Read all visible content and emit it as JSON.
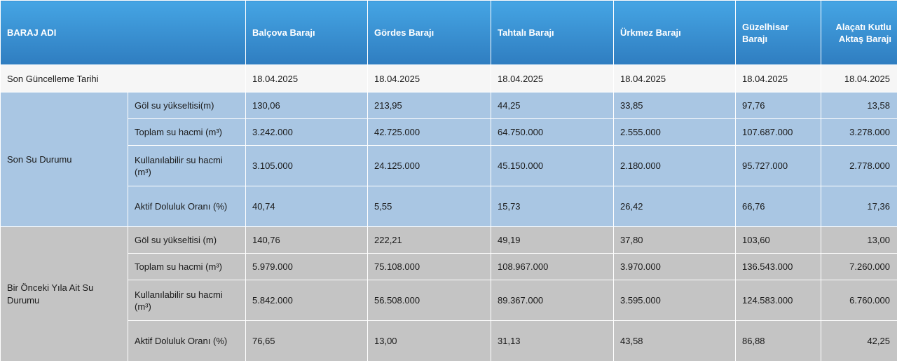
{
  "header": {
    "name_label": "BARAJ ADI",
    "dams": [
      "Balçova Barajı",
      "Gördes Barajı",
      "Tahtalı Barajı",
      "Ürkmez Barajı",
      "Güzelhisar Barajı",
      "Alaçatı Kutlu Aktaş Barajı"
    ]
  },
  "update_row": {
    "label": "Son Güncelleme Tarihi",
    "values": [
      "18.04.2025",
      "18.04.2025",
      "18.04.2025",
      "18.04.2025",
      "18.04.2025",
      "18.04.2025"
    ]
  },
  "groups": [
    {
      "label": "Son Su Durumu",
      "rows": [
        {
          "label": "Göl su yükseltisi(m)",
          "values": [
            "130,06",
            "213,95",
            "44,25",
            "33,85",
            "97,76",
            "13,58"
          ]
        },
        {
          "label": "Toplam su hacmi (m³)",
          "values": [
            "3.242.000",
            "42.725.000",
            "64.750.000",
            "2.555.000",
            "107.687.000",
            "3.278.000"
          ]
        },
        {
          "label": "Kullanılabilir su hacmi (m³)",
          "values": [
            "3.105.000",
            "24.125.000",
            "45.150.000",
            "2.180.000",
            "95.727.000",
            "2.778.000"
          ]
        },
        {
          "label": "Aktif Doluluk Oranı (%)",
          "values": [
            "40,74",
            "5,55",
            "15,73",
            "26,42",
            "66,76",
            "17,36"
          ]
        }
      ]
    },
    {
      "label": "Bir Önceki Yıla Ait Su Durumu",
      "rows": [
        {
          "label": "Göl su yükseltisi (m)",
          "values": [
            "140,76",
            "222,21",
            "49,19",
            "37,80",
            "103,60",
            "13,00"
          ]
        },
        {
          "label": "Toplam su hacmi (m³)",
          "values": [
            "5.979.000",
            "75.108.000",
            "108.967.000",
            "3.970.000",
            "136.543.000",
            "7.260.000"
          ]
        },
        {
          "label": "Kullanılabilir su hacmi (m³)",
          "values": [
            "5.842.000",
            "56.508.000",
            "89.367.000",
            "3.595.000",
            "124.583.000",
            "6.760.000"
          ]
        },
        {
          "label": "Aktif Doluluk Oranı (%)",
          "values": [
            "76,65",
            "13,00",
            "31,13",
            "43,58",
            "86,88",
            "42,25"
          ]
        }
      ]
    }
  ],
  "colors": {
    "header_blue": "#2f7dc0",
    "current_group_bg": "#a9c6e3",
    "previous_group_bg": "#c4c4c4",
    "date_row_bg": "#f6f6f6"
  }
}
